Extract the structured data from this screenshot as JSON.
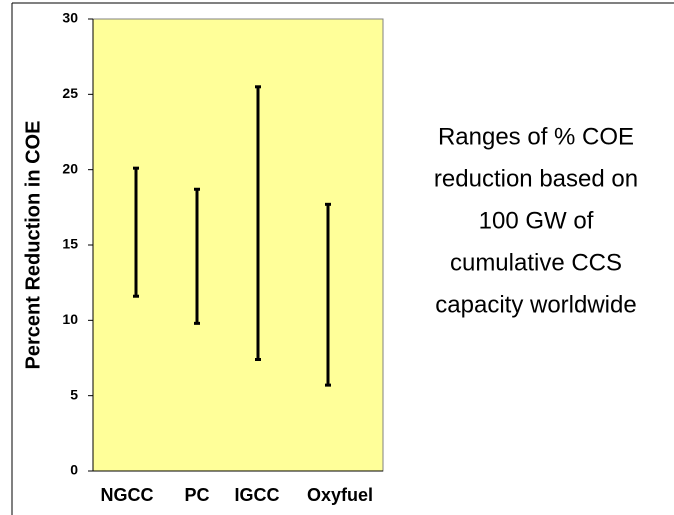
{
  "chart_data": {
    "type": "range",
    "y_label": "Percent Reduction in COE",
    "annotation": [
      "Ranges of % COE",
      "reduction based on",
      "100 GW of",
      "cumulative CCS",
      "capacity worldwide"
    ],
    "categories": [
      "NGCC",
      "PC",
      "IGCC",
      "Oxyfuel"
    ],
    "low": [
      11.6,
      9.8,
      7.4,
      5.7
    ],
    "high": [
      20.1,
      18.7,
      25.5,
      17.7
    ],
    "color": "#000000",
    "plot_background": "#ffff99",
    "ylim": [
      0,
      30
    ],
    "yticks": [
      0,
      5,
      10,
      15,
      20,
      25,
      30
    ]
  }
}
